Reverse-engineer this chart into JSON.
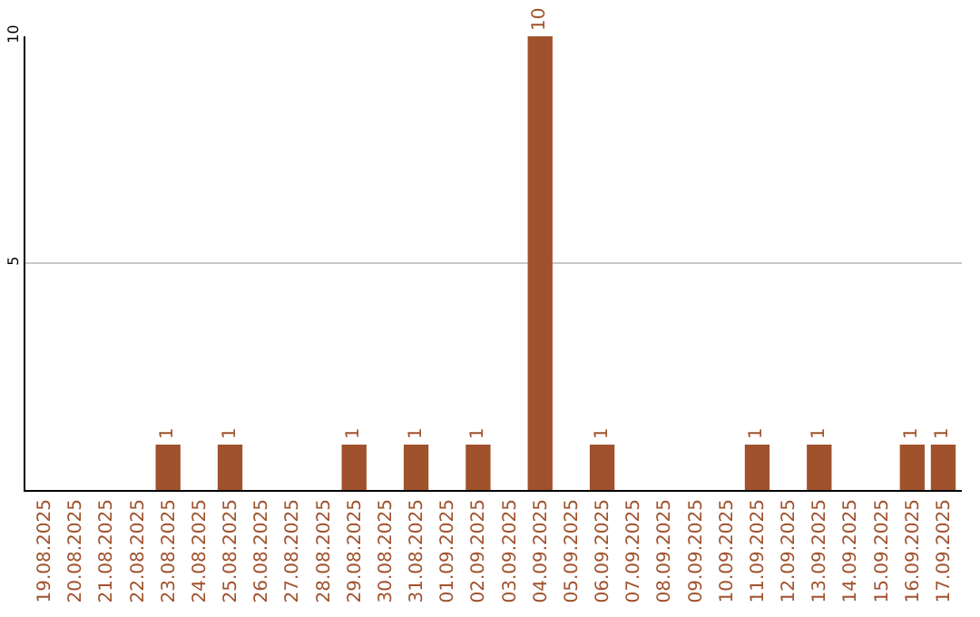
{
  "chart_data": {
    "type": "bar",
    "categories": [
      "19.08.2025",
      "20.08.2025",
      "21.08.2025",
      "22.08.2025",
      "23.08.2025",
      "24.08.2025",
      "25.08.2025",
      "26.08.2025",
      "27.08.2025",
      "28.08.2025",
      "29.08.2025",
      "30.08.2025",
      "31.08.2025",
      "01.09.2025",
      "02.09.2025",
      "03.09.2025",
      "04.09.2025",
      "05.09.2025",
      "06.09.2025",
      "07.09.2025",
      "08.09.2025",
      "09.09.2025",
      "10.09.2025",
      "11.09.2025",
      "12.09.2025",
      "13.09.2025",
      "14.09.2025",
      "15.09.2025",
      "16.09.2025",
      "17.09.2025"
    ],
    "values": [
      0,
      0,
      0,
      0,
      1,
      0,
      1,
      0,
      0,
      0,
      1,
      0,
      1,
      0,
      1,
      0,
      10,
      0,
      1,
      0,
      0,
      0,
      0,
      1,
      0,
      1,
      0,
      0,
      1,
      1
    ],
    "value_labels": [
      null,
      null,
      null,
      null,
      "1",
      null,
      "1",
      null,
      null,
      null,
      "1",
      null,
      "1",
      null,
      "1",
      null,
      "10",
      null,
      "1",
      null,
      null,
      null,
      null,
      "1",
      null,
      "1",
      null,
      null,
      "1",
      "1"
    ],
    "color": "#a0522d",
    "ylim": [
      0,
      10
    ],
    "yticks": [
      {
        "value": 0,
        "label": null
      },
      5,
      10
    ],
    "grid": "y",
    "legend": false
  }
}
